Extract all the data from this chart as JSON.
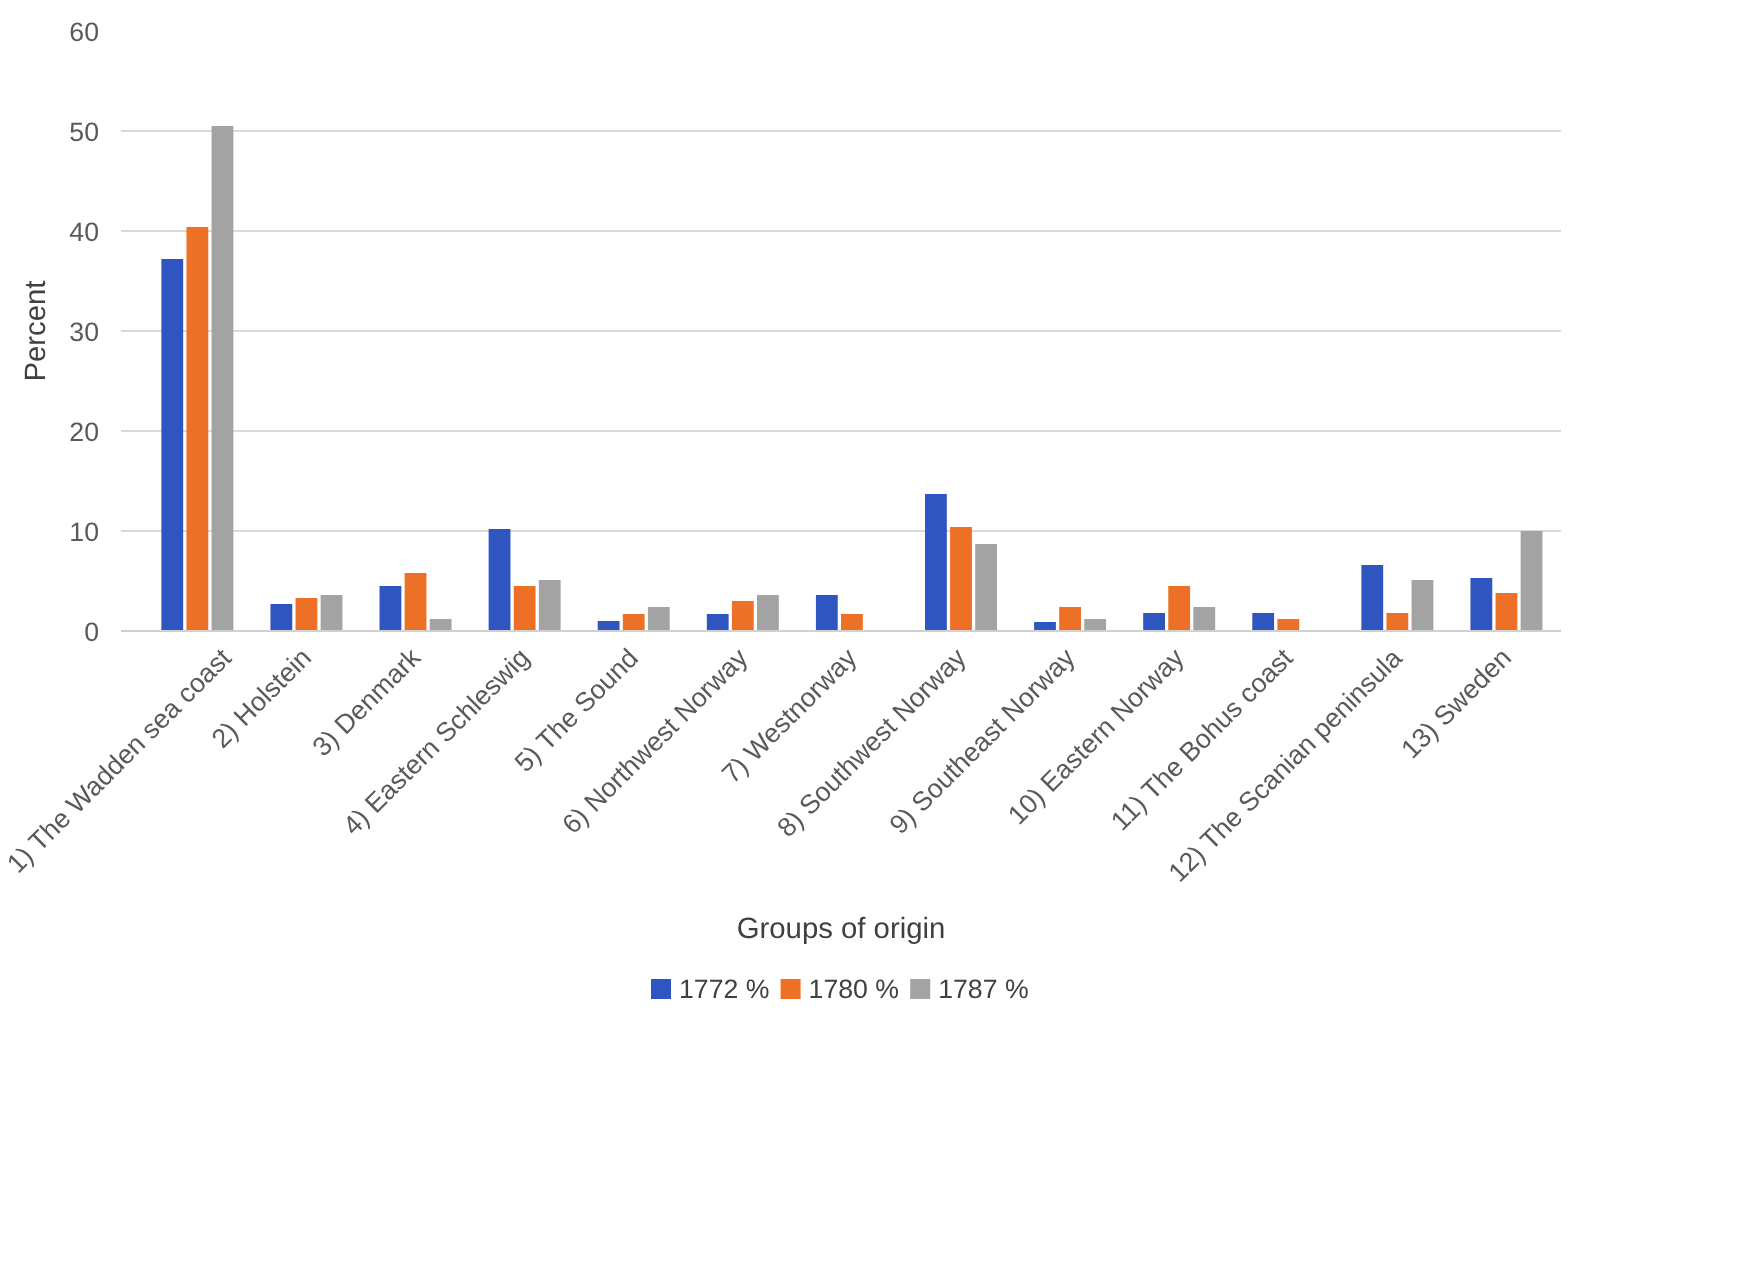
{
  "chart_data": {
    "type": "bar",
    "xlabel": "Groups of origin",
    "ylabel": "Percent",
    "categories": [
      "1) The Wadden sea coast",
      "2) Holstein",
      "3) Denmark",
      "4) Eastern Schleswig",
      "5) The Sound",
      "6) Northwest Norway",
      "7) Westnorway",
      "8) Southwest Norway",
      "9) Southeast Norway",
      "10) Eastern Norway",
      "11) The Bohus coast",
      "12) The Scanian peninsula",
      "13) Sweden"
    ],
    "series": [
      {
        "name": "1772 %",
        "color": "#2e55c0",
        "values": [
          37.2,
          2.7,
          4.5,
          10.2,
          1.0,
          1.7,
          3.6,
          13.7,
          0.9,
          1.8,
          1.8,
          6.6,
          5.3
        ]
      },
      {
        "name": "1780 %",
        "color": "#ec7126",
        "values": [
          40.4,
          3.3,
          5.8,
          4.5,
          1.7,
          3.0,
          1.7,
          10.4,
          2.4,
          4.5,
          1.2,
          1.8,
          3.8
        ]
      },
      {
        "name": "1787 %",
        "color": "#a3a3a3",
        "values": [
          50.5,
          3.6,
          1.2,
          5.1,
          2.4,
          3.6,
          null,
          8.7,
          1.2,
          2.4,
          null,
          5.1,
          10.0
        ]
      }
    ],
    "ylim": [
      0,
      60
    ],
    "yticks": [
      0,
      10,
      20,
      30,
      40,
      50,
      60
    ],
    "grid": "y",
    "legend": "bottom"
  }
}
